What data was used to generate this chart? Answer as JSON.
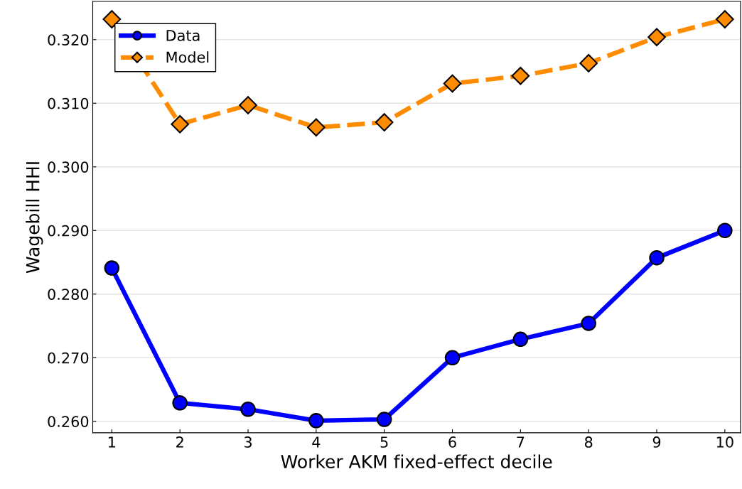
{
  "chart_data": {
    "type": "line",
    "xlabel": "Worker AKM fixed-effect decile",
    "ylabel": "Wagebill HHI",
    "x": [
      1,
      2,
      3,
      4,
      5,
      6,
      7,
      8,
      9,
      10
    ],
    "series": [
      {
        "name": "Data",
        "color": "#0000ff",
        "marker": "circle",
        "line_style": "solid",
        "values": [
          0.2841,
          0.2629,
          0.2619,
          0.2601,
          0.2603,
          0.27,
          0.2729,
          0.2754,
          0.2857,
          0.29
        ]
      },
      {
        "name": "Model",
        "color": "#ff8c00",
        "marker": "diamond",
        "line_style": "dashed",
        "values": [
          0.3232,
          0.3067,
          0.3097,
          0.3062,
          0.307,
          0.3131,
          0.3143,
          0.3163,
          0.3204,
          0.3232
        ]
      }
    ],
    "xlim": [
      0.72,
      10.23
    ],
    "xticks": [
      1,
      2,
      3,
      4,
      5,
      6,
      7,
      8,
      9,
      10
    ],
    "ylim": [
      0.2582,
      0.326
    ],
    "yticks": [
      {
        "value": 0.26,
        "label": "0.260"
      },
      {
        "value": 0.27,
        "label": "0.270"
      },
      {
        "value": 0.28,
        "label": "0.280"
      },
      {
        "value": 0.29,
        "label": "0.290"
      },
      {
        "value": 0.3,
        "label": "0.300"
      },
      {
        "value": 0.31,
        "label": "0.310"
      },
      {
        "value": 0.32,
        "label": "0.320"
      }
    ],
    "grid": "y",
    "legend": "top left"
  }
}
